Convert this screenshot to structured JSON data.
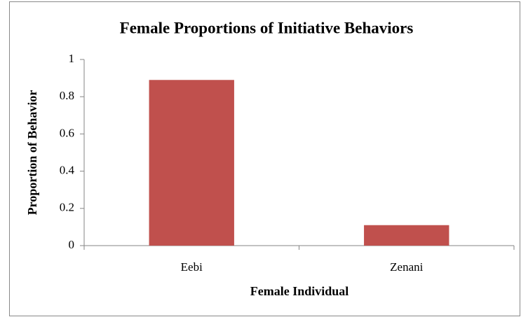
{
  "chart_data": {
    "type": "bar",
    "title": "Female Proportions of Initiative Behaviors",
    "categories": [
      "Eebi",
      "Zenani"
    ],
    "values": [
      0.89,
      0.11
    ],
    "color": "#c0504d",
    "x_label": "Female Individual",
    "y_label": "Proportion of Behavior",
    "ylim": [
      0,
      1
    ],
    "yticks": [
      0,
      0.2,
      0.4,
      0.6,
      0.8,
      1
    ],
    "grid": false
  }
}
